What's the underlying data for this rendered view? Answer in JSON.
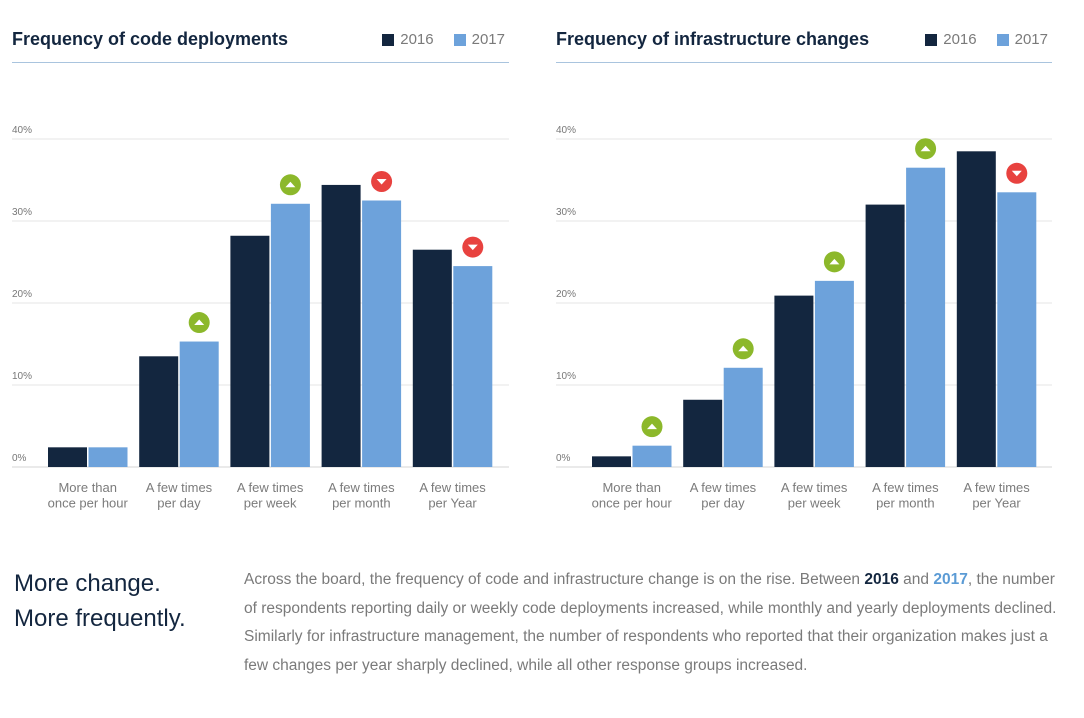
{
  "colors": {
    "series_2016": "#13263f",
    "series_2017": "#6da2db",
    "increase_marker": "#8cb82b",
    "decrease_marker": "#e8423f"
  },
  "chart_data": [
    {
      "type": "bar",
      "title": "Frequency of code deployments",
      "categories": [
        [
          "More than",
          "once per hour"
        ],
        [
          "A few times",
          "per day"
        ],
        [
          "A few times",
          "per week"
        ],
        [
          "A few times",
          "per month"
        ],
        [
          "A few times",
          "per Year"
        ]
      ],
      "series": [
        {
          "name": "2016",
          "values": [
            2.4,
            13.5,
            28.2,
            34.4,
            26.5
          ]
        },
        {
          "name": "2017",
          "values": [
            2.4,
            15.3,
            32.1,
            32.5,
            24.5
          ]
        }
      ],
      "change_markers": [
        "none",
        "up",
        "up",
        "down",
        "down"
      ],
      "ylim": [
        0,
        40
      ],
      "yticks": [
        "0%",
        "10%",
        "20%",
        "30%",
        "40%"
      ],
      "grid": true,
      "legend": "top-right"
    },
    {
      "type": "bar",
      "title": "Frequency of infrastructure changes",
      "categories": [
        [
          "More than",
          "once per hour"
        ],
        [
          "A few times",
          "per day"
        ],
        [
          "A few times",
          "per week"
        ],
        [
          "A few times",
          "per month"
        ],
        [
          "A few times",
          "per Year"
        ]
      ],
      "series": [
        {
          "name": "2016",
          "values": [
            1.3,
            8.2,
            20.9,
            32.0,
            38.5
          ]
        },
        {
          "name": "2017",
          "values": [
            2.6,
            12.1,
            22.7,
            36.5,
            33.5
          ]
        }
      ],
      "change_markers": [
        "up",
        "up",
        "up",
        "up",
        "down"
      ],
      "ylim": [
        0,
        40
      ],
      "yticks": [
        "0%",
        "10%",
        "20%",
        "30%",
        "40%"
      ],
      "grid": true,
      "legend": "top-right"
    }
  ],
  "summary": {
    "title_line1": "More change.",
    "title_line2": "More frequently.",
    "body_part1": "Across the board, the frequency of code and infrastructure change is on the rise. Between ",
    "highlight_2016": "2016",
    "body_part2": " and ",
    "highlight_2017": "2017",
    "body_part3": ", the number of respondents reporting daily or weekly code deployments increased, while monthly and yearly deployments declined. Similarly for infrastructure management, the number of respondents who reported that their organization makes just a few changes per year sharply declined, while all other response groups increased."
  }
}
